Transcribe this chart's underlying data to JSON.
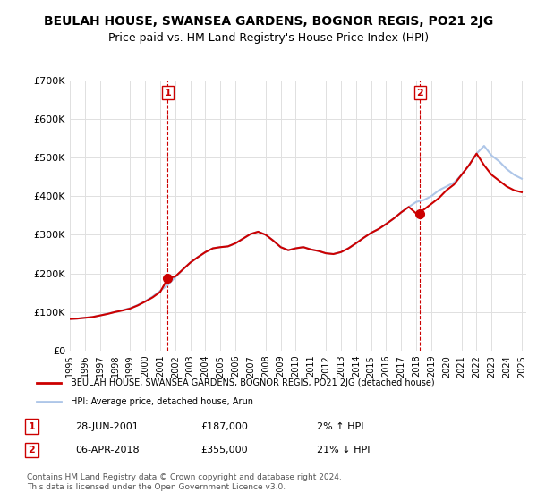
{
  "title": "BEULAH HOUSE, SWANSEA GARDENS, BOGNOR REGIS, PO21 2JG",
  "subtitle": "Price paid vs. HM Land Registry's House Price Index (HPI)",
  "hpi_label": "HPI: Average price, detached house, Arun",
  "property_label": "BEULAH HOUSE, SWANSEA GARDENS, BOGNOR REGIS, PO21 2JG (detached house)",
  "sale1_date": "28-JUN-2001",
  "sale1_price": 187000,
  "sale1_hpi": "2% ↑ HPI",
  "sale2_date": "06-APR-2018",
  "sale2_price": 355000,
  "sale2_hpi": "21% ↓ HPI",
  "footer": "Contains HM Land Registry data © Crown copyright and database right 2024.\nThis data is licensed under the Open Government Licence v3.0.",
  "ylim": [
    0,
    700000
  ],
  "yticks": [
    0,
    100000,
    200000,
    300000,
    400000,
    500000,
    600000,
    700000
  ],
  "ytick_labels": [
    "£0",
    "£100K",
    "£200K",
    "£300K",
    "£400K",
    "£500K",
    "£600K",
    "£700K"
  ],
  "hpi_color": "#aec6e8",
  "property_color": "#cc0000",
  "marker_color_sale1": "#cc0000",
  "marker_color_sale2": "#cc0000",
  "vline_color": "#cc0000",
  "background_color": "#ffffff",
  "sale1_x": 2001.5,
  "sale2_x": 2018.25,
  "hpi_data_x": [
    1995,
    1995.5,
    1996,
    1996.5,
    1997,
    1997.5,
    1998,
    1998.5,
    1999,
    1999.5,
    2000,
    2000.5,
    2001,
    2001.5,
    2002,
    2002.5,
    2003,
    2003.5,
    2004,
    2004.5,
    2005,
    2005.5,
    2006,
    2006.5,
    2007,
    2007.5,
    2008,
    2008.5,
    2009,
    2009.5,
    2010,
    2010.5,
    2011,
    2011.5,
    2012,
    2012.5,
    2013,
    2013.5,
    2014,
    2014.5,
    2015,
    2015.5,
    2016,
    2016.5,
    2017,
    2017.5,
    2018,
    2018.5,
    2019,
    2019.5,
    2020,
    2020.5,
    2021,
    2021.5,
    2022,
    2022.5,
    2023,
    2023.5,
    2024,
    2024.5,
    2025
  ],
  "hpi_data_y": [
    82000,
    83000,
    85000,
    87000,
    91000,
    96000,
    100000,
    105000,
    110000,
    118000,
    128000,
    140000,
    155000,
    170000,
    190000,
    210000,
    228000,
    242000,
    255000,
    265000,
    268000,
    270000,
    278000,
    290000,
    302000,
    308000,
    300000,
    285000,
    268000,
    260000,
    265000,
    268000,
    262000,
    258000,
    252000,
    250000,
    255000,
    265000,
    278000,
    292000,
    305000,
    315000,
    328000,
    342000,
    358000,
    372000,
    385000,
    390000,
    400000,
    415000,
    425000,
    435000,
    455000,
    480000,
    510000,
    530000,
    505000,
    490000,
    470000,
    455000,
    445000
  ],
  "prop_data_x": [
    1995,
    1995.5,
    1996,
    1996.5,
    1997,
    1997.5,
    1998,
    1998.5,
    1999,
    1999.5,
    2000,
    2000.5,
    2001,
    2001.5,
    2002,
    2002.5,
    2003,
    2003.5,
    2004,
    2004.5,
    2005,
    2005.5,
    2006,
    2006.5,
    2007,
    2007.5,
    2008,
    2008.5,
    2009,
    2009.5,
    2010,
    2010.5,
    2011,
    2011.5,
    2012,
    2012.5,
    2013,
    2013.5,
    2014,
    2014.5,
    2015,
    2015.5,
    2016,
    2016.5,
    2017,
    2017.5,
    2018,
    2018.5,
    2019,
    2019.5,
    2020,
    2020.5,
    2021,
    2021.5,
    2022,
    2022.5,
    2023,
    2023.5,
    2024,
    2024.5,
    2025
  ],
  "prop_data_y": [
    82000,
    83000,
    85000,
    87000,
    91000,
    95000,
    100000,
    104000,
    109000,
    117000,
    127000,
    138000,
    152000,
    187000,
    192000,
    210000,
    228000,
    242000,
    255000,
    265000,
    268000,
    270000,
    278000,
    290000,
    302000,
    308000,
    300000,
    285000,
    268000,
    260000,
    265000,
    268000,
    262000,
    258000,
    252000,
    250000,
    255000,
    265000,
    278000,
    292000,
    305000,
    315000,
    328000,
    342000,
    358000,
    372000,
    355000,
    365000,
    380000,
    395000,
    415000,
    430000,
    455000,
    480000,
    510000,
    480000,
    455000,
    440000,
    425000,
    415000,
    410000
  ]
}
